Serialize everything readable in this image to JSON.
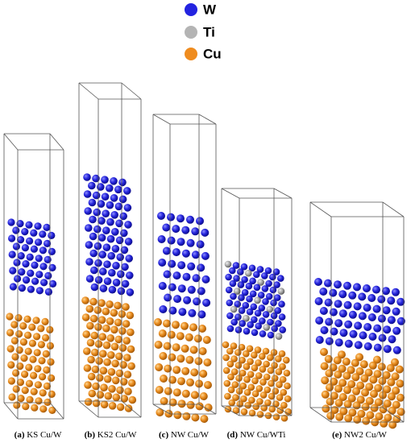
{
  "legend": [
    {
      "label": "W"
    },
    {
      "label": "Ti"
    },
    {
      "label": "Cu"
    }
  ],
  "panels": [
    {
      "label": "(a)",
      "caption": "KS Cu/W"
    },
    {
      "label": "(b)",
      "caption": "KS2 Cu/W"
    },
    {
      "label": "(c)",
      "caption": "NW Cu/W"
    },
    {
      "label": "(d)",
      "caption": "NW Cu/WTi"
    },
    {
      "label": "(e)",
      "caption": "NW2 Cu/W"
    }
  ]
}
